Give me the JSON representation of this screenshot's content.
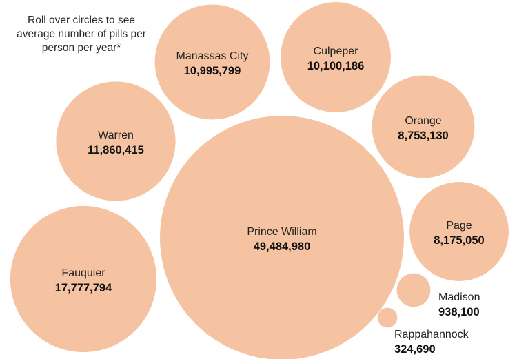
{
  "instructions": "Roll over circles to see average number of pills per person per year*",
  "colors": {
    "bubble_fill": "#f5c3a1",
    "text": "#222222"
  },
  "chart_data": {
    "type": "bubble",
    "items": [
      {
        "name": "Prince William",
        "value": 49484980,
        "value_label": "49,484,980"
      },
      {
        "name": "Fauquier",
        "value": 17777794,
        "value_label": "17,777,794"
      },
      {
        "name": "Warren",
        "value": 11860415,
        "value_label": "11,860,415"
      },
      {
        "name": "Manassas City",
        "value": 10995799,
        "value_label": "10,995,799"
      },
      {
        "name": "Culpeper",
        "value": 10100186,
        "value_label": "10,100,186"
      },
      {
        "name": "Orange",
        "value": 8753130,
        "value_label": "8,753,130"
      },
      {
        "name": "Page",
        "value": 8175050,
        "value_label": "8,175,050"
      },
      {
        "name": "Madison",
        "value": 938100,
        "value_label": "938,100"
      },
      {
        "name": "Rappahannock",
        "value": 324690,
        "value_label": "324,690"
      }
    ]
  }
}
